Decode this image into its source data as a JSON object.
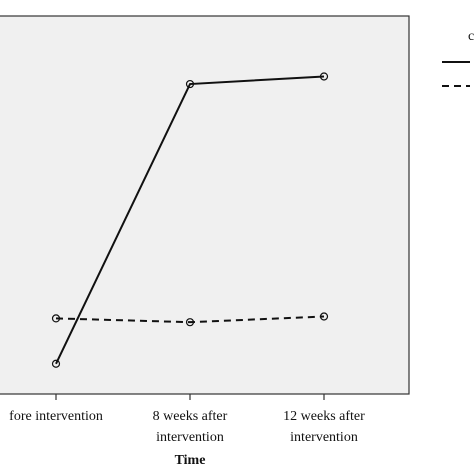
{
  "chart_data": {
    "type": "line",
    "title": "",
    "xlabel": "Time",
    "ylabel": "",
    "categories": [
      "fore intervention",
      "8 weeks after intervention",
      "12 weeks after intervention"
    ],
    "category_lines": [
      [
        "fore intervention"
      ],
      [
        "8 weeks after",
        "intervention"
      ],
      [
        "12 weeks after",
        "intervention"
      ]
    ],
    "ylim": [
      0,
      100
    ],
    "grid": false,
    "legend_position": "right (partially cropped)",
    "series": [
      {
        "values": [
          8,
          82,
          84
        ],
        "style": "solid"
      },
      {
        "values": [
          20,
          19,
          20.5
        ],
        "style": "dashed"
      }
    ],
    "colors": {
      "line": "#111111",
      "plot_background": "#f0f0f0",
      "frame": "#333333"
    }
  }
}
